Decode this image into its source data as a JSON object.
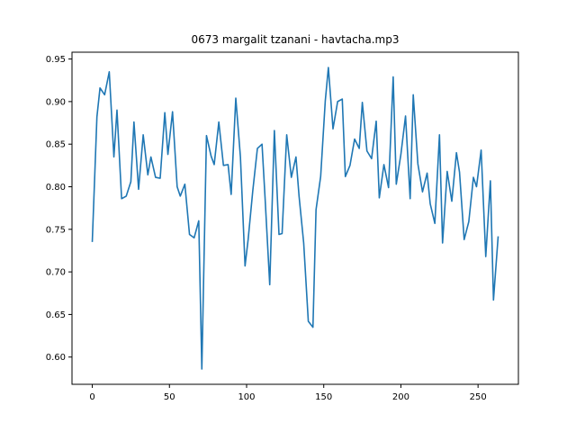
{
  "chart_data": {
    "type": "line",
    "title": "0673 margalit tzanani - havtacha.mp3",
    "xlabel": "",
    "ylabel": "",
    "xlim": [
      -13.15,
      276.15
    ],
    "ylim": [
      0.568,
      0.958
    ],
    "xticks": [
      0,
      50,
      100,
      150,
      200,
      250
    ],
    "yticks": [
      0.6,
      0.65,
      0.7,
      0.75,
      0.8,
      0.85,
      0.9,
      0.95
    ],
    "xtick_labels": [
      "0",
      "50",
      "100",
      "150",
      "200",
      "250"
    ],
    "ytick_labels": [
      "0.60",
      "0.65",
      "0.70",
      "0.75",
      "0.80",
      "0.85",
      "0.90",
      "0.95"
    ],
    "grid": false,
    "series": [
      {
        "color": "#1f77b4",
        "x": [
          0,
          3,
          5,
          8,
          11,
          14,
          16,
          19,
          22,
          25,
          27,
          30,
          33,
          36,
          38,
          41,
          44,
          47,
          49,
          52,
          55,
          57,
          60,
          63,
          66,
          69,
          71,
          74,
          77,
          79,
          82,
          85,
          88,
          90,
          93,
          96,
          99,
          101,
          104,
          107,
          110,
          112,
          115,
          118,
          121,
          123,
          126,
          129,
          132,
          134,
          137,
          140,
          143,
          145,
          148,
          151,
          153,
          156,
          159,
          162,
          164,
          167,
          170,
          173,
          175,
          178,
          181,
          184,
          186,
          189,
          192,
          195,
          197,
          200,
          203,
          206,
          208,
          211,
          214,
          217,
          219,
          222,
          225,
          227,
          230,
          233,
          236,
          238,
          241,
          244,
          247,
          249,
          252,
          255,
          258,
          260,
          263
        ],
        "y": [
          0.736,
          0.882,
          0.916,
          0.908,
          0.935,
          0.835,
          0.89,
          0.786,
          0.789,
          0.806,
          0.876,
          0.797,
          0.861,
          0.814,
          0.835,
          0.811,
          0.81,
          0.887,
          0.838,
          0.888,
          0.8,
          0.789,
          0.803,
          0.744,
          0.74,
          0.76,
          0.586,
          0.86,
          0.836,
          0.826,
          0.876,
          0.825,
          0.826,
          0.791,
          0.904,
          0.835,
          0.707,
          0.738,
          0.795,
          0.845,
          0.85,
          0.786,
          0.685,
          0.866,
          0.744,
          0.745,
          0.861,
          0.811,
          0.835,
          0.789,
          0.734,
          0.642,
          0.635,
          0.773,
          0.812,
          0.901,
          0.94,
          0.868,
          0.9,
          0.903,
          0.812,
          0.825,
          0.856,
          0.845,
          0.899,
          0.842,
          0.833,
          0.877,
          0.787,
          0.826,
          0.799,
          0.929,
          0.803,
          0.838,
          0.883,
          0.786,
          0.908,
          0.827,
          0.794,
          0.816,
          0.78,
          0.757,
          0.861,
          0.734,
          0.818,
          0.783,
          0.84,
          0.817,
          0.738,
          0.759,
          0.811,
          0.8,
          0.843,
          0.718,
          0.807,
          0.667,
          0.741
        ]
      }
    ]
  }
}
